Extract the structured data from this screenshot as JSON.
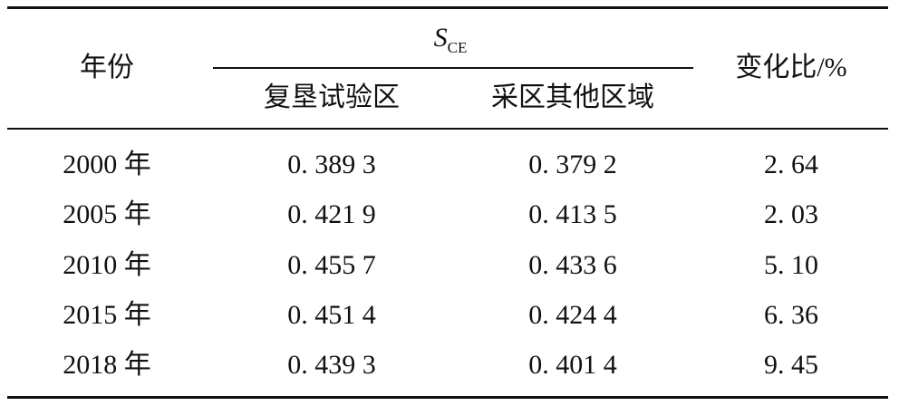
{
  "header": {
    "year": "年份",
    "group": {
      "symbol": "S",
      "subscript": "CE"
    },
    "columns": [
      "复垦试验区",
      "采区其他区域"
    ],
    "ratio": "变化比/%"
  },
  "table": {
    "rows": [
      [
        "2000 年",
        "0. 389 3",
        "0. 379 2",
        "2. 64"
      ],
      [
        "2005 年",
        "0. 421 9",
        "0. 413 5",
        "2. 03"
      ],
      [
        "2010 年",
        "0. 455 7",
        "0. 433 6",
        "5. 10"
      ],
      [
        "2015 年",
        "0. 451 4",
        "0. 424 4",
        "6. 36"
      ],
      [
        "2018 年",
        "0. 439 3",
        "0. 401 4",
        "9. 45"
      ]
    ]
  }
}
